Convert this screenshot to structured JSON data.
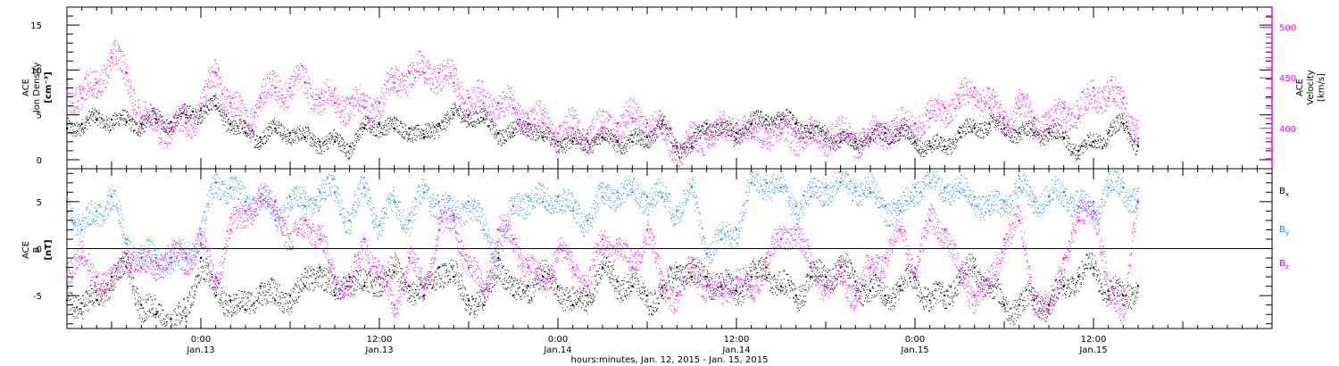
{
  "colors": {
    "black": "#000000",
    "magenta": "#ff00ff",
    "blue": "#1f8bff"
  },
  "xaxis": {
    "title": "hours:minutes, Jan. 12, 2015 - Jan. 15, 2015",
    "ticks": [
      {
        "t": 24,
        "time": "0:00",
        "date": "Jan.13"
      },
      {
        "t": 36,
        "time": "12:00",
        "date": "Jan.13"
      },
      {
        "t": 48,
        "time": "0:00",
        "date": "Jan.14"
      },
      {
        "t": 60,
        "time": "12:00",
        "date": "Jan.14"
      },
      {
        "t": 72,
        "time": "0:00",
        "date": "Jan.15"
      },
      {
        "t": 84,
        "time": "12:00",
        "date": "Jan.15"
      }
    ]
  },
  "chart_data": [
    {
      "type": "scatter",
      "panel": "top",
      "x_unit": "hours from Jan. 12, 2015 0:00",
      "xlim": [
        15,
        96
      ],
      "left_axis": {
        "label_lines": [
          "ACE",
          "Ion Density",
          "[cm^-3]"
        ],
        "label_lines_display": [
          "ACE",
          "Ion Density",
          "[cm⁻³]"
        ],
        "ylim": [
          -1,
          17
        ],
        "ticks": [
          0,
          5,
          10,
          15
        ]
      },
      "right_axis": {
        "label_lines": [
          "ACE",
          "Velocity",
          "[km/s]"
        ],
        "ylim": [
          360,
          520
        ],
        "ticks": [
          400,
          450,
          500
        ],
        "color": "#ff00ff"
      },
      "series": [
        {
          "name": "Ion Density",
          "axis": "left",
          "color": "#000000",
          "x": [
            15,
            16,
            17,
            18,
            19,
            20,
            21,
            22,
            23,
            24,
            25,
            26,
            27,
            28,
            29,
            30,
            31,
            32,
            33,
            34,
            35,
            36,
            37,
            38,
            39,
            40,
            41,
            42,
            43,
            44,
            45,
            46,
            47,
            48,
            49,
            50,
            51,
            52,
            53,
            54,
            55,
            56,
            57,
            58,
            59,
            60,
            61,
            62,
            63,
            64,
            65,
            66,
            67,
            68,
            69,
            70,
            71,
            72,
            73,
            74,
            75,
            76,
            77,
            78,
            79,
            80,
            81,
            82,
            83,
            84,
            85,
            86,
            87
          ],
          "y": [
            3.5,
            4.0,
            4.5,
            4.5,
            4.2,
            4.0,
            4.5,
            4.2,
            5.0,
            5.5,
            6.0,
            4.0,
            3.0,
            2.5,
            3.5,
            3.0,
            2.5,
            2.0,
            2.0,
            1.5,
            3.5,
            4.0,
            3.5,
            3.5,
            2.5,
            4.0,
            5.0,
            5.0,
            4.5,
            3.0,
            3.0,
            4.0,
            2.5,
            2.0,
            2.0,
            2.0,
            2.5,
            2.0,
            2.0,
            2.5,
            4.0,
            1.5,
            1.5,
            4.0,
            3.0,
            3.0,
            4.0,
            4.5,
            4.5,
            4.0,
            3.0,
            3.0,
            2.0,
            2.0,
            2.5,
            3.0,
            3.0,
            2.0,
            1.5,
            1.5,
            3.0,
            3.5,
            4.0,
            3.5,
            3.0,
            3.0,
            3.0,
            2.5,
            1.0,
            2.0,
            3.0,
            4.0,
            1.5
          ]
        },
        {
          "name": "Velocity",
          "axis": "right",
          "color": "#ff00ff",
          "x": [
            15,
            16,
            17,
            18,
            19,
            20,
            21,
            22,
            23,
            24,
            25,
            26,
            27,
            28,
            29,
            30,
            31,
            32,
            33,
            34,
            35,
            36,
            37,
            38,
            39,
            40,
            41,
            42,
            43,
            44,
            45,
            46,
            47,
            48,
            49,
            50,
            51,
            52,
            53,
            54,
            55,
            56,
            57,
            58,
            59,
            60,
            61,
            62,
            63,
            64,
            65,
            66,
            67,
            68,
            69,
            70,
            71,
            72,
            73,
            74,
            75,
            76,
            77,
            78,
            79,
            80,
            81,
            82,
            83,
            84,
            85,
            86,
            87
          ],
          "y": [
            440,
            430,
            445,
            470,
            455,
            410,
            405,
            400,
            405,
            420,
            455,
            425,
            405,
            430,
            440,
            440,
            445,
            430,
            425,
            425,
            420,
            425,
            445,
            455,
            455,
            455,
            445,
            430,
            425,
            425,
            420,
            410,
            405,
            395,
            400,
            395,
            400,
            405,
            410,
            405,
            395,
            380,
            385,
            395,
            395,
            405,
            395,
            400,
            395,
            395,
            390,
            395,
            395,
            390,
            390,
            400,
            400,
            405,
            410,
            420,
            425,
            440,
            420,
            410,
            420,
            410,
            400,
            420,
            410,
            440,
            430,
            430,
            390
          ]
        }
      ]
    },
    {
      "type": "scatter",
      "panel": "bottom",
      "x_unit": "hours from Jan. 12, 2015 0:00",
      "xlim": [
        15,
        96
      ],
      "left_axis": {
        "label_lines": [
          "ACE",
          "B",
          "[nT]"
        ],
        "ylim": [
          -8.5,
          8.5
        ],
        "ticks": [
          -5,
          0,
          5
        ]
      },
      "zero_line": 0,
      "legend_position": "right",
      "series": [
        {
          "name": "Bx",
          "label_main": "B",
          "label_sub": "x",
          "color": "#000000",
          "x": [
            15,
            16,
            17,
            18,
            19,
            20,
            21,
            22,
            23,
            24,
            25,
            26,
            27,
            28,
            29,
            30,
            31,
            32,
            33,
            34,
            35,
            36,
            37,
            38,
            39,
            40,
            41,
            42,
            43,
            44,
            45,
            46,
            47,
            48,
            49,
            50,
            51,
            52,
            53,
            54,
            55,
            56,
            57,
            58,
            59,
            60,
            61,
            62,
            63,
            64,
            65,
            66,
            67,
            68,
            69,
            70,
            71,
            72,
            73,
            74,
            75,
            76,
            77,
            78,
            79,
            80,
            81,
            82,
            83,
            84,
            85,
            86,
            87
          ],
          "y": [
            -5.5,
            -5.8,
            -5.5,
            -3.0,
            -2.0,
            -6.0,
            -7.0,
            -7.5,
            -7.2,
            -1.0,
            -5.0,
            -5.5,
            -6.5,
            -4.0,
            -5.5,
            -5.0,
            -4.0,
            -2.0,
            -5.0,
            -3.0,
            -4.0,
            -3.0,
            -2.5,
            -4.0,
            -5.0,
            -2.0,
            -3.0,
            -5.5,
            -6.0,
            -1.0,
            -5.0,
            -4.0,
            -3.0,
            -4.0,
            -6.0,
            -5.0,
            -2.0,
            -3.5,
            -4.0,
            -5.0,
            -5.0,
            -2.0,
            -3.0,
            -3.0,
            -4.0,
            -4.5,
            -3.0,
            -2.0,
            -4.0,
            -5.0,
            -3.0,
            -3.0,
            -2.0,
            -3.5,
            -4.5,
            -5.0,
            -4.0,
            -3.0,
            -5.5,
            -5.0,
            -3.0,
            -2.0,
            -4.0,
            -6.0,
            -6.0,
            -5.5,
            -6.0,
            -4.0,
            -3.0,
            -2.0,
            -4.5,
            -5.0,
            -4.0
          ]
        },
        {
          "name": "By",
          "label_main": "B",
          "label_sub": "y",
          "color": "#1f8bff",
          "x": [
            15,
            16,
            17,
            18,
            19,
            20,
            21,
            22,
            23,
            24,
            25,
            26,
            27,
            28,
            29,
            30,
            31,
            32,
            33,
            34,
            35,
            36,
            37,
            38,
            39,
            40,
            41,
            42,
            43,
            44,
            45,
            46,
            47,
            48,
            49,
            50,
            51,
            52,
            53,
            54,
            55,
            56,
            57,
            58,
            59,
            60,
            61,
            62,
            63,
            64,
            65,
            66,
            67,
            68,
            69,
            70,
            71,
            72,
            73,
            74,
            75,
            76,
            77,
            78,
            79,
            80,
            81,
            82,
            83,
            84,
            85,
            86,
            87
          ],
          "y": [
            5.0,
            2.0,
            4.0,
            5.5,
            0.5,
            -1.0,
            -1.0,
            -1.5,
            -0.5,
            1.5,
            7.0,
            6.5,
            5.0,
            5.5,
            3.0,
            5.5,
            4.5,
            6.0,
            6.0,
            3.0,
            6.5,
            2.5,
            5.0,
            3.0,
            6.0,
            5.0,
            3.5,
            5.0,
            2.0,
            -0.5,
            4.5,
            5.5,
            5.0,
            5.5,
            4.0,
            3.0,
            5.5,
            6.0,
            6.0,
            5.5,
            5.5,
            4.0,
            6.5,
            -0.5,
            1.0,
            2.0,
            7.0,
            7.0,
            6.5,
            4.5,
            5.5,
            6.5,
            7.0,
            6.5,
            6.0,
            4.5,
            4.0,
            6.5,
            7.0,
            6.5,
            6.0,
            5.5,
            4.0,
            5.0,
            6.5,
            5.0,
            5.5,
            6.0,
            4.5,
            4.0,
            6.5,
            6.5,
            5.0
          ]
        },
        {
          "name": "Bz",
          "label_main": "B",
          "label_sub": "z",
          "color": "#ff00ff",
          "x": [
            15,
            16,
            17,
            18,
            19,
            20,
            21,
            22,
            23,
            24,
            25,
            26,
            27,
            28,
            29,
            30,
            31,
            32,
            33,
            34,
            35,
            36,
            37,
            38,
            39,
            40,
            41,
            42,
            43,
            44,
            45,
            46,
            47,
            48,
            49,
            50,
            51,
            52,
            53,
            54,
            55,
            56,
            57,
            58,
            59,
            60,
            61,
            62,
            63,
            64,
            65,
            66,
            67,
            68,
            69,
            70,
            71,
            72,
            73,
            74,
            75,
            76,
            77,
            78,
            79,
            80,
            81,
            82,
            83,
            84,
            85,
            86,
            87
          ],
          "y": [
            -2.0,
            -1.0,
            -3.0,
            -4.0,
            -0.5,
            -2.0,
            -1.5,
            -1.0,
            -1.0,
            0.5,
            -3.0,
            2.0,
            4.0,
            5.0,
            5.0,
            0.0,
            3.0,
            1.0,
            -3.0,
            -4.0,
            1.0,
            -3.0,
            -6.0,
            -1.0,
            -4.0,
            2.0,
            3.0,
            -2.0,
            -4.5,
            2.0,
            1.0,
            -2.0,
            -4.0,
            0.0,
            -2.0,
            -4.0,
            1.0,
            0.0,
            -2.0,
            2.0,
            -4.0,
            -5.0,
            -2.0,
            -4.0,
            -5.0,
            -3.0,
            -5.0,
            -1.0,
            1.0,
            2.0,
            -2.0,
            -4.0,
            -3.0,
            -5.0,
            -2.0,
            -1.0,
            2.0,
            -2.0,
            3.0,
            2.0,
            -3.0,
            -5.0,
            -4.0,
            1.0,
            3.0,
            -5.0,
            -6.5,
            -1.0,
            3.0,
            5.0,
            -5.0,
            -6.0,
            5.0
          ]
        }
      ]
    }
  ]
}
